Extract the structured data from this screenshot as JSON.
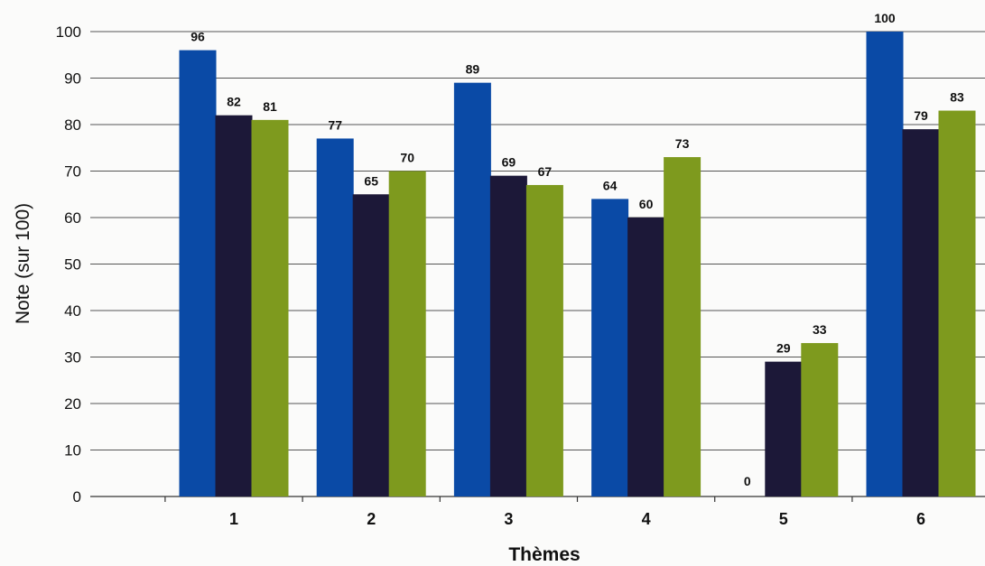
{
  "chart_data": {
    "type": "bar",
    "title": "",
    "xlabel": "Thèmes",
    "ylabel": "Note (sur 100)",
    "ylim": [
      0,
      100
    ],
    "yticks": [
      0,
      10,
      20,
      30,
      40,
      50,
      60,
      70,
      80,
      90,
      100
    ],
    "grid": true,
    "categories": [
      "1",
      "2",
      "3",
      "4",
      "5",
      "6"
    ],
    "series": [
      {
        "color": "#0a4aa6",
        "values": [
          96,
          77,
          89,
          64,
          0,
          100
        ]
      },
      {
        "color": "#1c1838",
        "values": [
          82,
          65,
          69,
          60,
          29,
          79
        ]
      },
      {
        "color": "#7e9a1e",
        "values": [
          81,
          70,
          67,
          73,
          33,
          83
        ]
      }
    ]
  }
}
